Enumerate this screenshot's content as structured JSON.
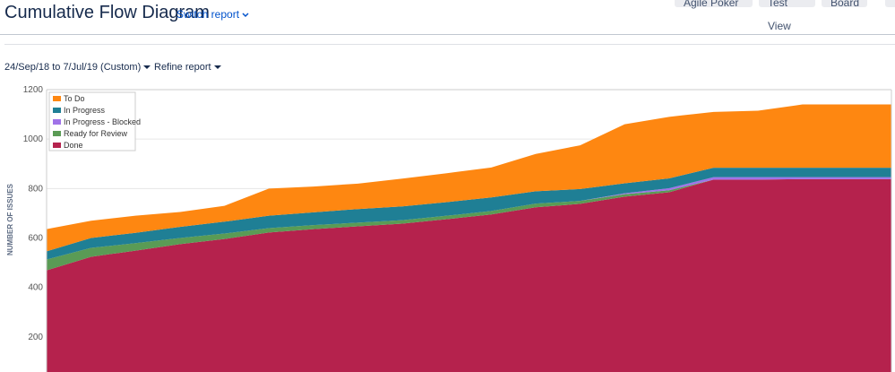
{
  "header": {
    "title": "Cumulative Flow Diagram",
    "switch_report": "Switch report",
    "buttons": [
      "Agile Poker",
      "Test View",
      "Board"
    ]
  },
  "filters": {
    "date_range": "24/Sep/18 to 7/Jul/19 (Custom)",
    "refine": "Refine report"
  },
  "chart_data": {
    "type": "area",
    "stacked": true,
    "y_label": "NUMBER OF ISSUES",
    "categories": [
      null,
      null,
      null,
      null,
      null,
      null,
      null,
      null,
      null,
      null,
      null,
      null,
      null,
      null,
      null,
      null,
      null,
      null,
      null,
      null
    ],
    "ylim": [
      0,
      1200
    ],
    "yticks": [
      200,
      400,
      600,
      800,
      1000,
      1200
    ],
    "grid": true,
    "legend": "top-left",
    "series": [
      {
        "name": "To Do",
        "color": "#fe8711",
        "values": [
          90,
          70,
          69,
          60,
          64,
          110,
          104,
          103,
          112,
          117,
          121,
          151,
          177,
          239,
          249,
          226,
          231,
          256,
          256,
          256
        ]
      },
      {
        "name": "In Progress",
        "color": "#1f7f95",
        "values": [
          33,
          40,
          42,
          45,
          48,
          50,
          52,
          55,
          56,
          55,
          55,
          50,
          48,
          40,
          40,
          38,
          38,
          38,
          38,
          38
        ]
      },
      {
        "name": "In Progress - Blocked",
        "color": "#a073e8",
        "values": [
          0,
          0,
          0,
          0,
          0,
          0,
          0,
          0,
          0,
          0,
          0,
          0,
          0,
          4,
          8,
          10,
          10,
          8,
          8,
          8
        ]
      },
      {
        "name": "Ready for Review",
        "color": "#5a9b55",
        "values": [
          44,
          36,
          30,
          25,
          22,
          18,
          16,
          15,
          14,
          14,
          14,
          15,
          12,
          10,
          8,
          0,
          0,
          0,
          0,
          0
        ]
      },
      {
        "name": "Done",
        "color": "#b5224d",
        "values": [
          469,
          524,
          549,
          575,
          596,
          622,
          636,
          647,
          658,
          676,
          695,
          724,
          738,
          767,
          785,
          836,
          836,
          838,
          838,
          838
        ]
      }
    ]
  }
}
